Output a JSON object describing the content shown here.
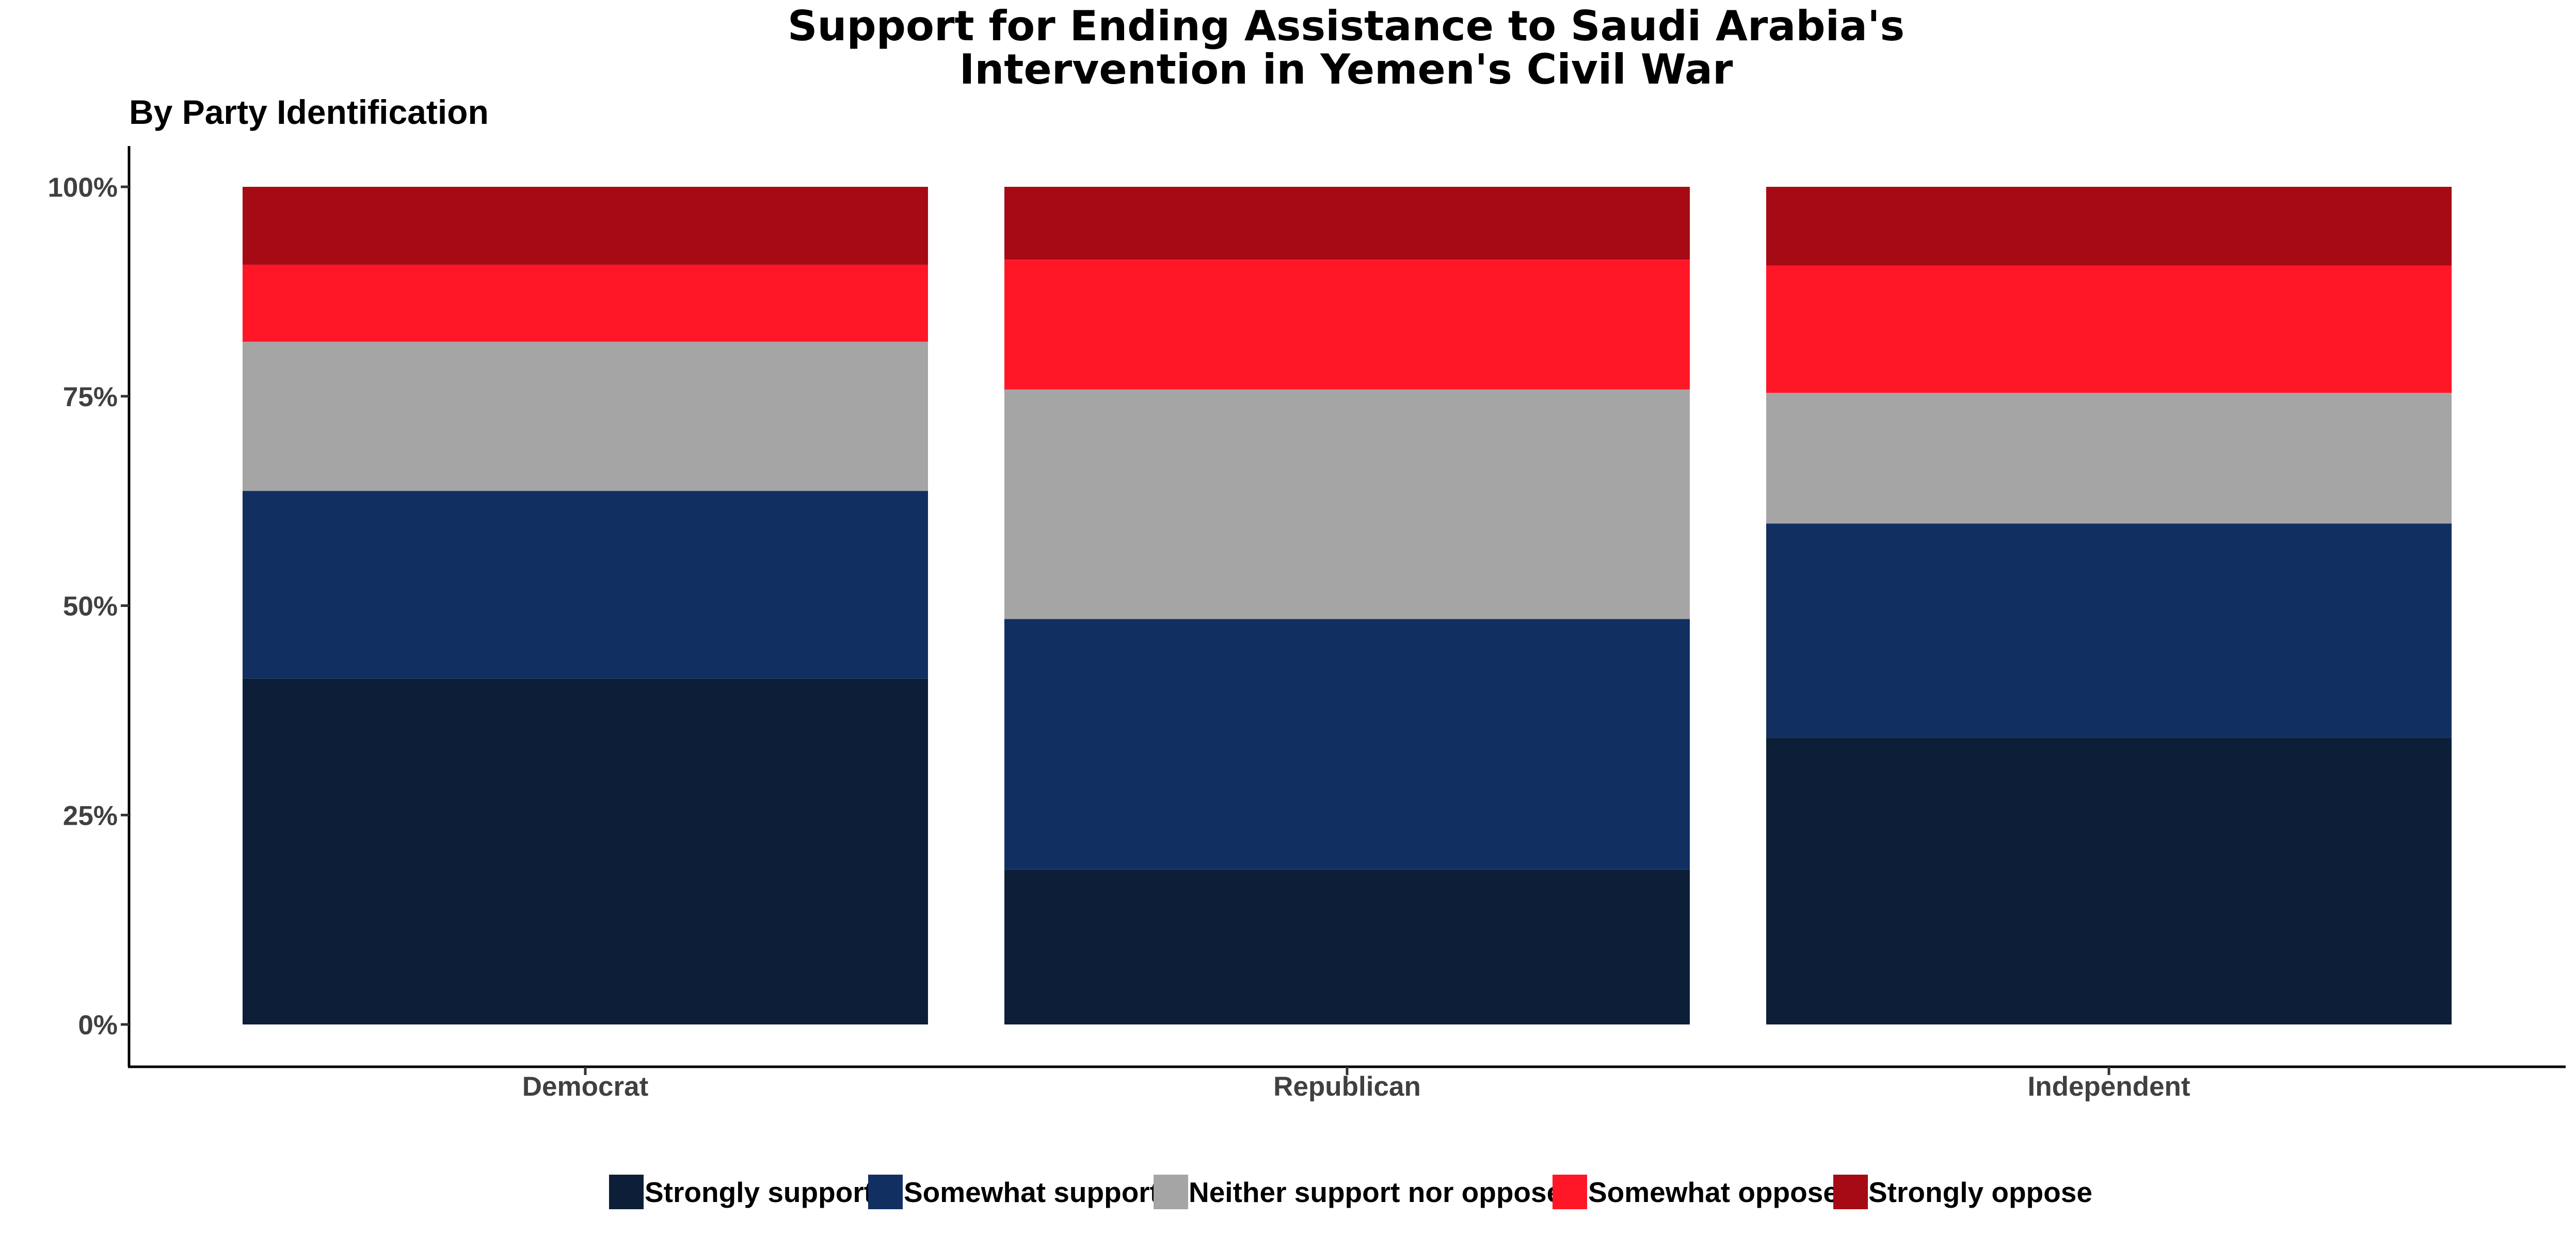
{
  "chart_data": {
    "type": "bar",
    "stacked": true,
    "title_lines": [
      "Support for Ending Assistance to Saudi Arabia's",
      "Intervention in Yemen's Civil War"
    ],
    "subtitle": "By Party Identification",
    "xlabel": "",
    "ylabel": "",
    "categories": [
      "Democrat",
      "Republican",
      "Independent"
    ],
    "y_ticks": [
      "0%",
      "25%",
      "50%",
      "75%",
      "100%"
    ],
    "ylim": [
      0,
      1
    ],
    "series": [
      {
        "name": "Strongly support",
        "color": "#0d1f38",
        "values": [
          0.413,
          0.185,
          0.342
        ]
      },
      {
        "name": "Somewhat support",
        "color": "#122f62",
        "values": [
          0.224,
          0.299,
          0.256
        ]
      },
      {
        "name": "Neither support nor oppose",
        "color": "#a5a5a5",
        "values": [
          0.178,
          0.274,
          0.156
        ]
      },
      {
        "name": "Somewhat oppose",
        "color": "#ff1727",
        "values": [
          0.092,
          0.155,
          0.152
        ]
      },
      {
        "name": "Strongly oppose",
        "color": "#a60a15",
        "values": [
          0.093,
          0.087,
          0.094
        ]
      }
    ],
    "legend_position": "bottom",
    "grid": false
  }
}
